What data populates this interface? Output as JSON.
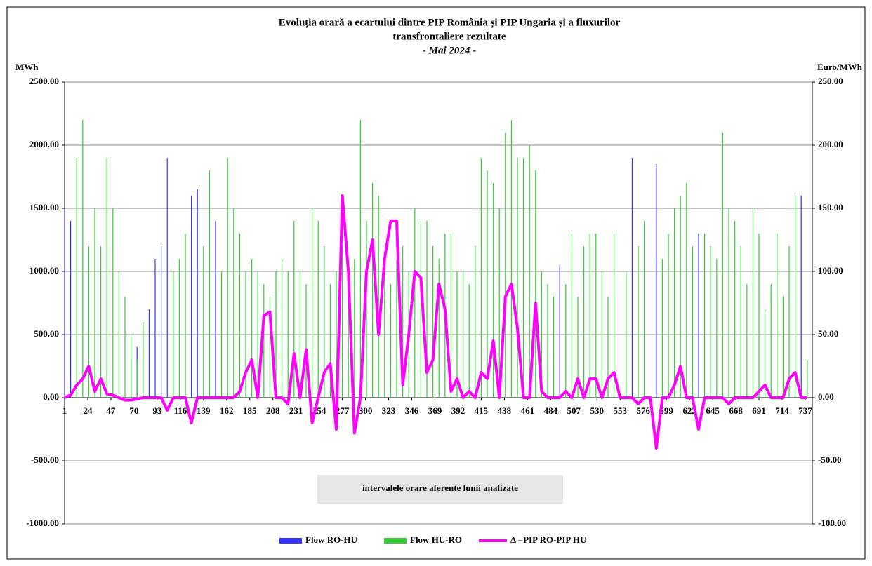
{
  "chart_data": {
    "type": "bar",
    "title": "Evoluția orară a ecartului dintre PIP România și PIP Ungaria și a fluxurilor",
    "title_line2": "transfrontaliere rezultate",
    "subtitle": "- Mai 2024 -",
    "y_label": "MWh",
    "y2_label": "Euro/MWh",
    "annotation": "intervalele orare aferente lunii analizate",
    "xlim": [
      1,
      744
    ],
    "xticks": [
      1,
      24,
      47,
      70,
      93,
      116,
      139,
      162,
      185,
      208,
      231,
      254,
      277,
      300,
      323,
      346,
      369,
      392,
      415,
      438,
      461,
      484,
      507,
      530,
      553,
      576,
      599,
      622,
      645,
      668,
      691,
      714,
      737
    ],
    "ylim": [
      -1000,
      2500
    ],
    "yticks": [
      {
        "value": -1000,
        "label": "-1000.00"
      },
      {
        "value": -500,
        "label": "-500.00"
      },
      {
        "value": 0,
        "label": "0.00"
      },
      {
        "value": 500,
        "label": "500.00"
      },
      {
        "value": 1000,
        "label": "1000.00"
      },
      {
        "value": 1500,
        "label": "1500.00"
      },
      {
        "value": 2000,
        "label": "2000.00"
      },
      {
        "value": 2500,
        "label": "2500.00"
      }
    ],
    "y2lim": [
      -100,
      250
    ],
    "y2ticks": [
      {
        "value": -100,
        "label": "-100.00"
      },
      {
        "value": -50,
        "label": "-50.00"
      },
      {
        "value": 0,
        "label": "0.00"
      },
      {
        "value": 50,
        "label": "50.00"
      },
      {
        "value": 100,
        "label": "100.00"
      },
      {
        "value": 150,
        "label": "150.00"
      },
      {
        "value": 200,
        "label": "200.00"
      },
      {
        "value": 250,
        "label": "250.00"
      }
    ],
    "grid": true,
    "legend": "bottom",
    "x": [
      1,
      7,
      13,
      19,
      25,
      31,
      37,
      43,
      49,
      55,
      61,
      67,
      73,
      79,
      85,
      91,
      97,
      103,
      109,
      115,
      121,
      127,
      133,
      139,
      145,
      151,
      157,
      163,
      169,
      175,
      181,
      187,
      193,
      199,
      205,
      211,
      217,
      223,
      229,
      235,
      241,
      247,
      253,
      259,
      265,
      271,
      277,
      283,
      289,
      295,
      301,
      307,
      313,
      319,
      325,
      331,
      337,
      343,
      349,
      355,
      361,
      367,
      373,
      379,
      385,
      391,
      397,
      403,
      409,
      415,
      421,
      427,
      433,
      439,
      445,
      451,
      457,
      463,
      469,
      475,
      481,
      487,
      493,
      499,
      505,
      511,
      517,
      523,
      529,
      535,
      541,
      547,
      553,
      559,
      565,
      571,
      577,
      583,
      589,
      595,
      601,
      607,
      613,
      619,
      625,
      631,
      637,
      643,
      649,
      655,
      661,
      667,
      673,
      679,
      685,
      691,
      697,
      703,
      709,
      715,
      721,
      727,
      733,
      739
    ],
    "series": [
      {
        "name": "Flow RO-HU",
        "type": "bar",
        "color": "#3333ff",
        "values": [
          1500,
          1400,
          0,
          0,
          0,
          0,
          0,
          0,
          0,
          0,
          0,
          300,
          400,
          0,
          700,
          1100,
          1200,
          1900,
          0,
          0,
          0,
          1600,
          1650,
          0,
          0,
          1400,
          0,
          0,
          0,
          0,
          0,
          0,
          0,
          0,
          0,
          0,
          0,
          0,
          0,
          0,
          0,
          0,
          0,
          0,
          0,
          0,
          0,
          0,
          0,
          0,
          0,
          0,
          0,
          0,
          0,
          0,
          0,
          0,
          0,
          0,
          0,
          0,
          0,
          0,
          0,
          0,
          0,
          0,
          0,
          0,
          0,
          0,
          0,
          0,
          0,
          0,
          0,
          0,
          0,
          0,
          0,
          0,
          1050,
          0,
          0,
          0,
          0,
          0,
          0,
          0,
          0,
          0,
          0,
          0,
          1900,
          0,
          0,
          0,
          1850,
          0,
          0,
          0,
          0,
          0,
          0,
          1300,
          0,
          0,
          0,
          0,
          0,
          0,
          0,
          0,
          0,
          0,
          0,
          0,
          0,
          0,
          0,
          0,
          1600,
          0
        ]
      },
      {
        "name": "Flow HU-RO",
        "type": "bar",
        "color": "#33cc33",
        "values": [
          0,
          0,
          1900,
          2200,
          1200,
          1500,
          1200,
          1900,
          1500,
          1000,
          800,
          500,
          300,
          600,
          0,
          0,
          0,
          0,
          1000,
          1100,
          1300,
          0,
          0,
          1200,
          1800,
          0,
          1000,
          1900,
          1500,
          1300,
          1000,
          1100,
          1000,
          900,
          800,
          1000,
          1100,
          1000,
          1400,
          1000,
          900,
          1500,
          1400,
          1200,
          900,
          1000,
          1200,
          1000,
          1100,
          2200,
          1400,
          1700,
          1600,
          1000,
          900,
          1100,
          1200,
          1000,
          1500,
          1400,
          1400,
          1200,
          1100,
          1300,
          1300,
          1000,
          1000,
          900,
          1200,
          1900,
          1800,
          1700,
          1500,
          2100,
          2200,
          1900,
          1900,
          2000,
          1800,
          1000,
          900,
          800,
          0,
          900,
          1300,
          800,
          1200,
          1300,
          1300,
          1000,
          800,
          1300,
          0,
          1000,
          0,
          1200,
          1400,
          0,
          0,
          1100,
          1300,
          1500,
          1600,
          1700,
          1200,
          0,
          1300,
          1200,
          1100,
          2100,
          1500,
          1400,
          1200,
          900,
          1500,
          1300,
          700,
          900,
          1300,
          800,
          1200,
          1600,
          0,
          300
        ]
      },
      {
        "name": "Δ =PIP RO-PIP HU",
        "type": "line",
        "axis": "y2",
        "color": "#ff00ff",
        "values": [
          0,
          2,
          10,
          15,
          25,
          5,
          15,
          3,
          2,
          0,
          -2,
          -2,
          -1,
          0,
          0,
          0,
          0,
          -10,
          0,
          0,
          0,
          -20,
          0,
          0,
          0,
          0,
          0,
          0,
          0,
          5,
          20,
          30,
          0,
          65,
          68,
          0,
          0,
          -5,
          35,
          0,
          38,
          -20,
          0,
          20,
          27,
          -25,
          160,
          100,
          -28,
          0,
          100,
          125,
          50,
          110,
          140,
          140,
          10,
          50,
          100,
          95,
          20,
          30,
          90,
          70,
          5,
          15,
          0,
          5,
          0,
          20,
          15,
          45,
          0,
          80,
          90,
          55,
          0,
          0,
          75,
          5,
          0,
          0,
          0,
          5,
          0,
          15,
          0,
          15,
          15,
          0,
          15,
          20,
          0,
          0,
          0,
          -5,
          0,
          0,
          -40,
          0,
          0,
          10,
          25,
          0,
          0,
          -25,
          0,
          0,
          0,
          0,
          -5,
          0,
          0,
          0,
          0,
          5,
          10,
          0,
          0,
          0,
          15,
          20,
          0,
          0
        ]
      }
    ]
  }
}
